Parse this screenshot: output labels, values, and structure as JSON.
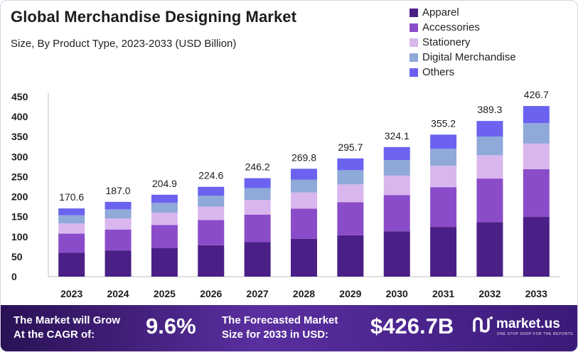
{
  "header": {
    "title": "Global Merchandise Designing Market",
    "subtitle": "Size, By Product Type, 2023-2033 (USD Billion)"
  },
  "colors": {
    "Apparel": "#4a1f86",
    "Accessories": "#8b4cc9",
    "Stationery": "#d9b6ee",
    "Digital Merchandise": "#8fa9d9",
    "Others": "#6b63f0"
  },
  "chart_data": {
    "type": "bar",
    "stacked": true,
    "title": "Global Merchandise Designing Market",
    "subtitle": "Size, By Product Type, 2023-2033 (USD Billion)",
    "categories": [
      "2023",
      "2024",
      "2025",
      "2026",
      "2027",
      "2028",
      "2029",
      "2030",
      "2031",
      "2032",
      "2033"
    ],
    "series": [
      {
        "name": "Apparel",
        "values": [
          59.7,
          65.5,
          71.7,
          78.6,
          86.2,
          94.4,
          103.5,
          113.4,
          124.3,
          136.3,
          149.3
        ]
      },
      {
        "name": "Accessories",
        "values": [
          47.8,
          52.4,
          57.4,
          62.9,
          68.9,
          75.5,
          82.8,
          90.7,
          99.5,
          109.0,
          119.5
        ]
      },
      {
        "name": "Stationery",
        "values": [
          25.6,
          28.0,
          30.7,
          33.7,
          36.9,
          40.5,
          44.4,
          48.6,
          53.3,
          58.4,
          64.0
        ]
      },
      {
        "name": "Digital Merchandise",
        "values": [
          20.5,
          22.4,
          24.6,
          27.0,
          29.5,
          32.4,
          35.5,
          38.9,
          42.6,
          46.7,
          51.2
        ]
      },
      {
        "name": "Others",
        "values": [
          17.0,
          18.7,
          20.5,
          22.4,
          24.7,
          27.0,
          29.5,
          32.5,
          35.5,
          38.9,
          42.7
        ]
      }
    ],
    "totals": [
      "170.6",
      "187.0",
      "204.9",
      "224.6",
      "246.2",
      "269.8",
      "295.7",
      "324.1",
      "355.2",
      "389.3",
      "426.7"
    ],
    "yticks": [
      "0",
      "50",
      "100",
      "150",
      "200",
      "250",
      "300",
      "350",
      "400",
      "450"
    ],
    "ylim": [
      0,
      450
    ],
    "legend_position": "top-right",
    "grid": false
  },
  "footer": {
    "cagr_line1": "The Market will Grow",
    "cagr_line2": "At the CAGR of:",
    "cagr_value": "9.6%",
    "forecast_line1": "The Forecasted Market",
    "forecast_line2": "Size for 2033 in USD:",
    "forecast_value": "$426.7B",
    "brand_name": "market.us",
    "brand_tagline": "ONE STOP SHOP FOR THE REPORTS",
    "brand_icon": "market-us-logo-icon"
  }
}
